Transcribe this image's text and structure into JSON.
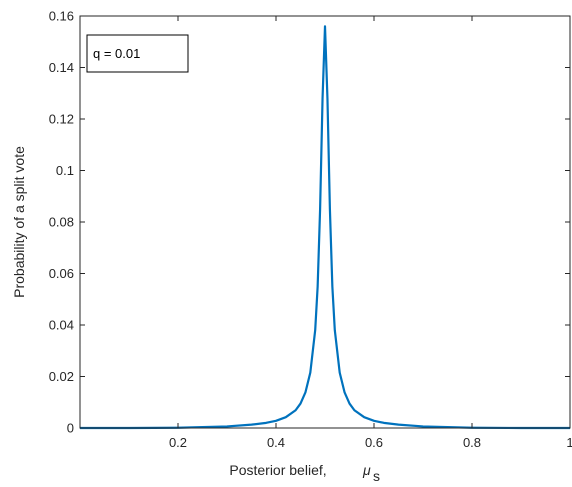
{
  "chart_data": {
    "type": "line",
    "title": "",
    "xlabel": "Posterior belief,",
    "xlabel_symbol": "μ",
    "xlabel_subscript": "s",
    "ylabel": "Probability of a split vote",
    "xlim": [
      0,
      1
    ],
    "ylim": [
      0,
      0.16
    ],
    "xticks": [
      "0.2",
      "0.4",
      "0.6",
      "0.8",
      "1"
    ],
    "yticks": [
      "0",
      "0.02",
      "0.04",
      "0.06",
      "0.08",
      "0.1",
      "0.12",
      "0.14",
      "0.16"
    ],
    "annotation": "q = 0.01",
    "grid": false,
    "series": [
      {
        "color": "#0072BD",
        "x": [
          0.0,
          0.1,
          0.2,
          0.3,
          0.35,
          0.38,
          0.4,
          0.42,
          0.44,
          0.45,
          0.46,
          0.47,
          0.48,
          0.485,
          0.49,
          0.495,
          0.5,
          0.505,
          0.51,
          0.515,
          0.52,
          0.53,
          0.54,
          0.55,
          0.56,
          0.58,
          0.6,
          0.62,
          0.65,
          0.7,
          0.8,
          0.9,
          1.0
        ],
        "y": [
          0.0,
          0.0,
          0.0001,
          0.0006,
          0.0013,
          0.002,
          0.0028,
          0.0042,
          0.0069,
          0.0095,
          0.0138,
          0.0215,
          0.038,
          0.055,
          0.085,
          0.128,
          0.156,
          0.128,
          0.085,
          0.055,
          0.038,
          0.0215,
          0.0138,
          0.0095,
          0.0069,
          0.0042,
          0.0028,
          0.002,
          0.0013,
          0.0006,
          0.0001,
          0.0,
          0.0
        ]
      }
    ]
  }
}
